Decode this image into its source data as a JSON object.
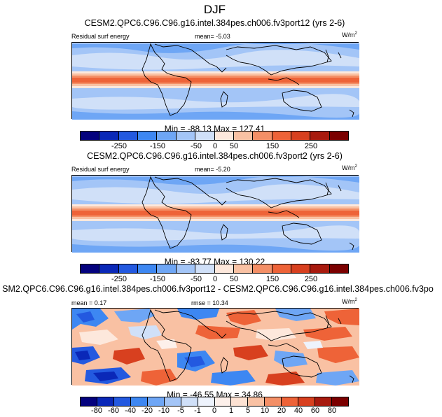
{
  "figure": {
    "title": "DJF"
  },
  "panels": [
    {
      "title": "CESM2.QPC6.C96.C96.g16.intel.384pes.ch006.fv3port12 (yrs 2-6)",
      "left_label": "Residual surf energy",
      "center_label": "mean=  -5.03",
      "units_base": "W/m",
      "units_exp": "2",
      "minmax": "Min = -88.13 Max = 127.41",
      "colorbar_ticks": [
        "-250",
        "-150",
        "-50",
        "0",
        "50",
        "150",
        "250"
      ]
    },
    {
      "title": "CESM2.QPC6.C96.C96.g16.intel.384pes.ch006.fv3port2 (yrs 2-6)",
      "left_label": "Residual surf energy",
      "center_label": "mean=  -5.20",
      "units_base": "W/m",
      "units_exp": "2",
      "minmax": "Min = -83.77 Max = 130.22",
      "colorbar_ticks": [
        "-250",
        "-150",
        "-50",
        "0",
        "50",
        "150",
        "250"
      ]
    },
    {
      "title": "SM2.QPC6.C96.C96.g16.intel.384pes.ch006.fv3port12 - CESM2.QPC6.C96.C96.g16.intel.384pes.ch006.fv3po",
      "left_label": "mean =   0.17",
      "center_label": "rmse =  10.34",
      "units_base": "W/m",
      "units_exp": "2",
      "minmax": "Min = -46.55 Max =  34.86",
      "colorbar_ticks": [
        "-80",
        "-60",
        "-40",
        "-20",
        "-10",
        "-5",
        "-1",
        "0",
        "1",
        "5",
        "10",
        "20",
        "40",
        "60",
        "80"
      ]
    }
  ],
  "colors": {
    "abs_scale": [
      "#04027e",
      "#0a28b8",
      "#2359e0",
      "#3d87f2",
      "#6ea6f5",
      "#a3c5f7",
      "#d0e0f8",
      "#fde8dc",
      "#f9c1a3",
      "#f48f66",
      "#ee6338",
      "#d8401f",
      "#a81a0e",
      "#7b0000"
    ],
    "diff_scale": [
      "#04027e",
      "#0a28b8",
      "#2359e0",
      "#3d87f2",
      "#6ea6f5",
      "#a3c5f7",
      "#d0e0f8",
      "#eef3fc",
      "#fdf0ea",
      "#fde2d3",
      "#f9c1a3",
      "#f48f66",
      "#ee6338",
      "#d8401f",
      "#a81a0e",
      "#7b0000"
    ]
  }
}
